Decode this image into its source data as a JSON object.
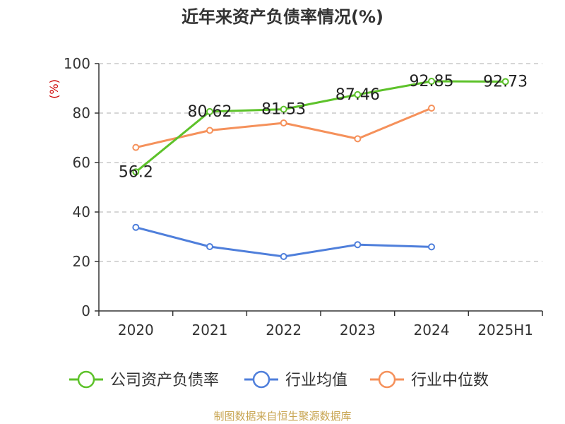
{
  "chart_data": {
    "type": "line",
    "title": "近年来资产负债率情况(%)",
    "ylabel": "(%)",
    "ylim": [
      0,
      100
    ],
    "yticks": [
      0,
      20,
      40,
      60,
      80,
      100
    ],
    "grid": true,
    "legend_position": "bottom",
    "categories": [
      "2020",
      "2021",
      "2022",
      "2023",
      "2024",
      "2025H1"
    ],
    "series": [
      {
        "name": "公司资产负债率",
        "color": "#5dc22a",
        "values": [
          56.2,
          80.62,
          81.53,
          87.46,
          92.85,
          92.73
        ],
        "labels": [
          "56.2",
          "80.62",
          "81.53",
          "87.46",
          "92.85",
          "92.73"
        ]
      },
      {
        "name": "行业均值",
        "color": "#4f7fdb",
        "values": [
          33.8,
          26,
          22,
          26.8,
          25.9,
          null
        ]
      },
      {
        "name": "行业中位数",
        "color": "#f5915b",
        "values": [
          66.1,
          73,
          76,
          69.6,
          82,
          null
        ]
      }
    ]
  },
  "footer": {
    "source": "制图数据来自恒生聚源数据库"
  }
}
